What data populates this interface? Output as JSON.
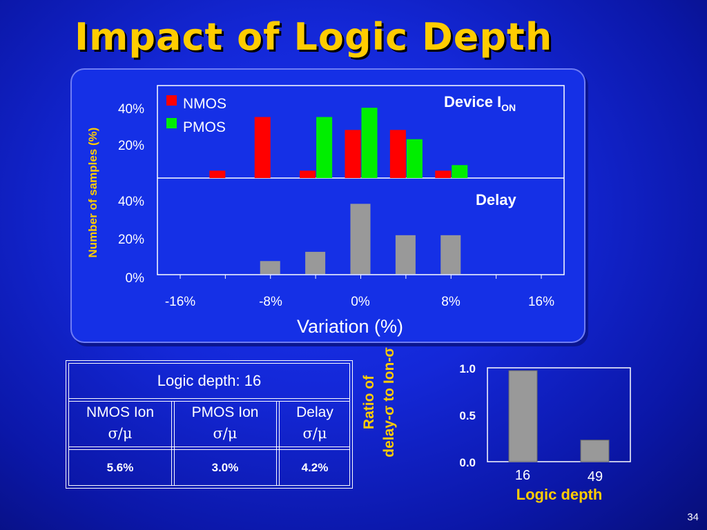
{
  "slide": {
    "title": "Impact of Logic Depth",
    "page_number": "34"
  },
  "colors": {
    "nmos": "#ff0000",
    "pmos": "#00ee00",
    "delay": "#999999",
    "title": "#ffcc00"
  },
  "chart_data": [
    {
      "type": "bar",
      "panel": "Device ION",
      "annotation": "Device I",
      "annotation_sub": "ON",
      "x": [
        "-12%",
        "-8%",
        "-4%",
        "0%",
        "4%",
        "8%"
      ],
      "series": [
        {
          "name": "NMOS",
          "values": [
            4,
            33,
            4,
            26,
            26,
            4
          ]
        },
        {
          "name": "PMOS",
          "values": [
            0,
            0,
            33,
            38,
            21,
            7
          ]
        }
      ],
      "ylim": [
        0,
        50
      ],
      "yticks": [
        "20%",
        "40%"
      ],
      "legend_position": "top-left"
    },
    {
      "type": "bar",
      "panel": "Delay",
      "annotation": "Delay",
      "x": [
        "-8%",
        "-4%",
        "0%",
        "4%",
        "8%"
      ],
      "series": [
        {
          "name": "Delay",
          "values": [
            7,
            12,
            38,
            21,
            21
          ]
        }
      ],
      "ylim": [
        0,
        42
      ],
      "yticks": [
        "0%",
        "20%",
        "40%"
      ],
      "xticks": [
        "-16%",
        "-8%",
        "0%",
        "8%",
        "16%"
      ],
      "xlabel": "Variation (%)",
      "ylabel": "Number of samples (%)"
    },
    {
      "type": "bar",
      "categories": [
        "16",
        "49"
      ],
      "values": [
        0.97,
        0.23
      ],
      "ylim": [
        0,
        1.0
      ],
      "yticks": [
        "0.0",
        "0.5",
        "1.0"
      ],
      "xlabel": "Logic depth",
      "ylabel_lines": [
        "Ratio of",
        "delay-σ to Ion-σ"
      ]
    }
  ],
  "table": {
    "title": "Logic depth: 16",
    "headers": [
      {
        "top": "NMOS Ion",
        "bottom": "σ/μ"
      },
      {
        "top": "PMOS Ion",
        "bottom": "σ/μ"
      },
      {
        "top": "Delay",
        "bottom": "σ/μ"
      }
    ],
    "values": [
      "5.6%",
      "3.0%",
      "4.2%"
    ]
  }
}
